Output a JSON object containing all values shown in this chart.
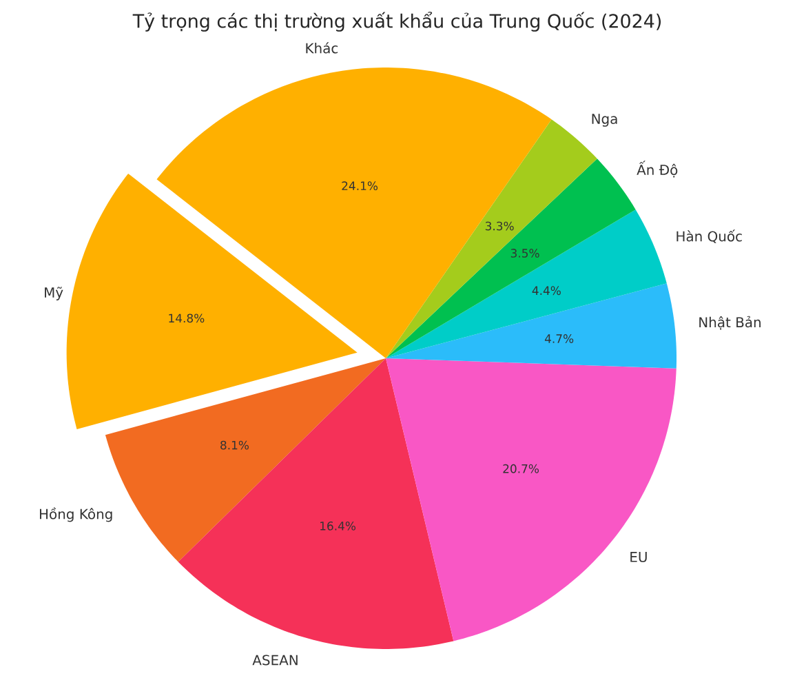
{
  "chart_data": {
    "type": "pie",
    "title": "Tỷ trọng các thị trường xuất khẩu của Trung Quốc (2024)",
    "categories": [
      "Mỹ",
      "Hồng Kông",
      "ASEAN",
      "EU",
      "Nhật Bản",
      "Hàn Quốc",
      "Ấn Độ",
      "Nga",
      "Khác"
    ],
    "values": [
      14.8,
      8.1,
      16.4,
      20.7,
      4.7,
      4.4,
      3.5,
      3.3,
      24.1
    ],
    "value_labels": [
      "14.8%",
      "8.1%",
      "16.4%",
      "20.7%",
      "4.7%",
      "4.4%",
      "3.5%",
      "3.3%",
      "24.1%"
    ],
    "colors": [
      "#ffb000",
      "#f26b21",
      "#f53158",
      "#f957c5",
      "#2bbcfa",
      "#00cdc8",
      "#00c050",
      "#a4cc1c",
      "#ffb000"
    ]
  }
}
